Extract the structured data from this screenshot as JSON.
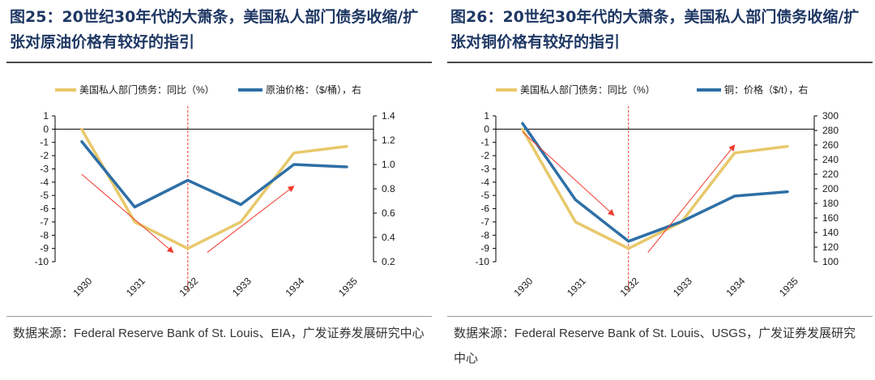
{
  "panels": [
    {
      "fig_title": "图25：20世纪30年代的大萧条，美国私人部门债务收缩/扩张对原油价格有较好的指引",
      "source": "数据来源：Federal Reserve Bank of St. Louis、EIA，广发证券发展研究中心"
    },
    {
      "fig_title": "图26：20世纪30年代的大萧条，美国私人部门债务收缩/扩张对铜价格有较好的指引",
      "source": "数据来源：Federal Reserve Bank of St. Louis、USGS，广发证券发展研究中心"
    }
  ],
  "colors": {
    "debt": "#e8c86a",
    "price": "#2e6fa6",
    "arrow": "#f03a2e",
    "marker": "#f03a2e"
  },
  "chart_data": [
    {
      "type": "line",
      "title": "图25：20世纪30年代的大萧条，美国私人部门债务收缩/扩张对原油价格有较好的指引",
      "x": [
        "1930",
        "1931",
        "1932",
        "1933",
        "1934",
        "1935"
      ],
      "series": [
        {
          "name": "美国私人部门债务：同比（%）",
          "axis": "left",
          "values": [
            0,
            -7,
            -9,
            -7,
            -1.8,
            -1.3
          ]
        },
        {
          "name": "原油价格：（$/桶），右",
          "axis": "right",
          "values": [
            1.19,
            0.65,
            0.87,
            0.67,
            1.0,
            0.98
          ]
        }
      ],
      "y_left": {
        "range": [
          -10,
          1
        ],
        "ticks": [
          1,
          0,
          -1,
          -2,
          -3,
          -4,
          -5,
          -6,
          -7,
          -8,
          -9,
          -10
        ]
      },
      "y_right": {
        "range": [
          0.2,
          1.4
        ],
        "ticks": [
          1.4,
          1.2,
          1.0,
          0.8,
          0.6,
          0.4,
          0.2
        ]
      },
      "marker_year": "1932",
      "arrows": [
        {
          "from": [
            "1930",
            -3.4
          ],
          "to": [
            "1932",
            -9.3
          ]
        },
        {
          "from": [
            "1932",
            -9.3
          ],
          "to": [
            "1934",
            -4.3
          ]
        }
      ],
      "legend": "top"
    },
    {
      "type": "line",
      "title": "图26：20世纪30年代的大萧条，美国私人部门债务收缩/扩张对铜价格有较好的指引",
      "x": [
        "1930",
        "1931",
        "1932",
        "1933",
        "1934",
        "1935"
      ],
      "series": [
        {
          "name": "美国私人部门债务：同比（%）",
          "axis": "left",
          "values": [
            0,
            -7,
            -9,
            -7,
            -1.8,
            -1.3
          ]
        },
        {
          "name": "铜：价格（$/t），右",
          "axis": "right",
          "values": [
            290,
            185,
            128,
            155,
            190,
            196
          ]
        }
      ],
      "y_left": {
        "range": [
          -10,
          1
        ],
        "ticks": [
          1,
          0,
          -1,
          -2,
          -3,
          -4,
          -5,
          -6,
          -7,
          -8,
          -9,
          -10
        ]
      },
      "y_right": {
        "range": [
          100,
          300
        ],
        "ticks": [
          300,
          280,
          260,
          240,
          220,
          200,
          180,
          160,
          140,
          120,
          100
        ]
      },
      "marker_year": "1932",
      "arrows": [
        {
          "from": [
            "1930",
            -0.2
          ],
          "to": [
            "1932",
            -6.5
          ]
        },
        {
          "from": [
            "1932",
            -9.3
          ],
          "to": [
            "1934",
            -1.2
          ]
        }
      ],
      "legend": "top"
    }
  ]
}
